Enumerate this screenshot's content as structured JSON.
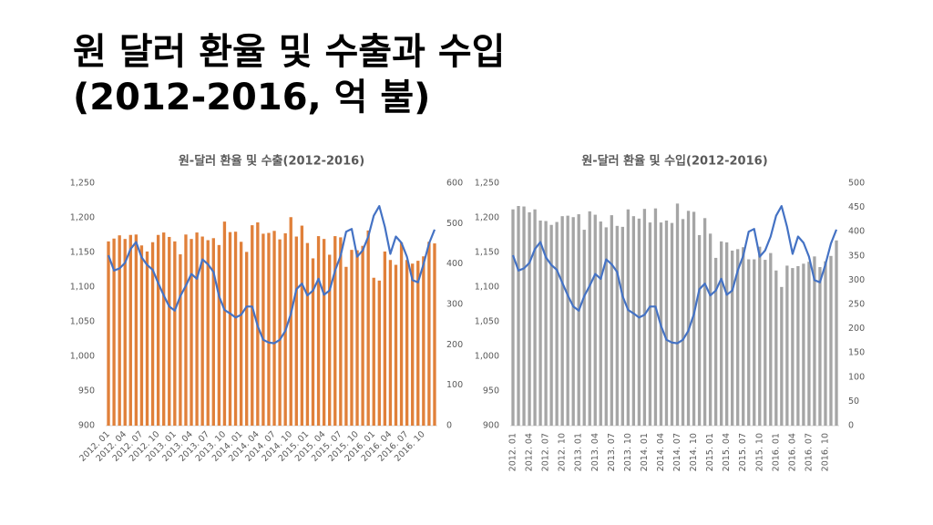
{
  "slide_title": [
    "원 달러 환율 및 수출과 수입",
    "(2012-2016, 억 불)"
  ],
  "chart_data": [
    {
      "type": "combo",
      "title": "원-달러 환율 및 수출(2012-2016)",
      "categories": [
        "2012. 01",
        null,
        null,
        "2012. 04",
        null,
        null,
        "2012. 07",
        null,
        null,
        "2012. 10",
        null,
        null,
        "2013. 01",
        null,
        null,
        "2013. 04",
        null,
        null,
        "2013. 07",
        null,
        null,
        "2013. 10",
        null,
        null,
        "2014. 01",
        null,
        null,
        "2014. 04",
        null,
        null,
        "2014. 07",
        null,
        null,
        "2014. 10",
        null,
        null,
        "2015. 01",
        null,
        null,
        "2015. 04",
        null,
        null,
        "2015. 07",
        null,
        null,
        "2015. 10",
        null,
        null,
        "2016. 01",
        null,
        null,
        "2016. 04",
        null,
        null,
        "2016. 07",
        null,
        null,
        "2016. 10",
        null,
        null
      ],
      "ylim": [
        900,
        1250
      ],
      "yticks": [
        900,
        950,
        {
          "value": 1000,
          "label": "1,000"
        },
        {
          "value": 1050,
          "label": "1,050"
        },
        {
          "value": 1100,
          "label": "1,100"
        },
        {
          "value": 1150,
          "label": "1,150"
        },
        {
          "value": 1200,
          "label": "1,200"
        },
        {
          "value": 1250,
          "label": "1,250"
        }
      ],
      "y2lim": [
        0,
        600
      ],
      "y2ticks": [
        0,
        100,
        200,
        300,
        400,
        500,
        600
      ],
      "series": [
        {
          "type": "bar",
          "axis": "y2",
          "color": "#e0803a",
          "values": [
            456,
            463,
            471,
            462,
            472,
            473,
            446,
            431,
            454,
            472,
            478,
            467,
            456,
            424,
            473,
            462,
            478,
            468,
            459,
            464,
            447,
            505,
            479,
            480,
            455,
            430,
            496,
            503,
            475,
            477,
            482,
            461,
            476,
            516,
            468,
            495,
            452,
            414,
            469,
            462,
            423,
            469,
            466,
            393,
            435,
            434,
            445,
            483,
            366,
            359,
            431,
            410,
            398,
            453,
            410,
            401,
            408,
            419,
            455,
            451
          ]
        },
        {
          "type": "line",
          "color": "#4472c4",
          "values": [
            1146,
            1124,
            1127,
            1135,
            1155,
            1165,
            1143,
            1132,
            1125,
            1106,
            1088,
            1072,
            1066,
            1087,
            1102,
            1119,
            1112,
            1140,
            1133,
            1122,
            1087,
            1067,
            1062,
            1056,
            1060,
            1072,
            1072,
            1044,
            1024,
            1020,
            1019,
            1024,
            1037,
            1061,
            1097,
            1105,
            1088,
            1095,
            1112,
            1089,
            1095,
            1124,
            1145,
            1180,
            1184,
            1144,
            1153,
            1173,
            1203,
            1217,
            1187,
            1148,
            1173,
            1164,
            1144,
            1110,
            1107,
            1133,
            1163,
            1183
          ]
        }
      ]
    },
    {
      "type": "combo",
      "title": "원-달러 환율 및 수입(2012-2016)",
      "categories": [
        "2012. 01",
        null,
        null,
        "2012. 04",
        null,
        null,
        "2012. 07",
        null,
        null,
        "2012. 10",
        null,
        null,
        "2013. 01",
        null,
        null,
        "2013. 04",
        null,
        null,
        "2013. 07",
        null,
        null,
        "2013. 10",
        null,
        null,
        "2014. 01",
        null,
        null,
        "2014. 04",
        null,
        null,
        "2014. 07",
        null,
        null,
        "2014. 10",
        null,
        null,
        "2015. 01",
        null,
        null,
        "2015. 04",
        null,
        null,
        "2015. 07",
        null,
        null,
        "2015. 10",
        null,
        null,
        "2016. 01",
        null,
        null,
        "2016. 04",
        null,
        null,
        "2016. 07",
        null,
        null,
        "2016. 10",
        null,
        null
      ],
      "ylim": [
        900,
        1250
      ],
      "yticks": [
        900,
        950,
        {
          "value": 1000,
          "label": "1,000"
        },
        {
          "value": 1050,
          "label": "1,050"
        },
        {
          "value": 1100,
          "label": "1,100"
        },
        {
          "value": 1150,
          "label": "1,150"
        },
        {
          "value": 1200,
          "label": "1,200"
        },
        {
          "value": 1250,
          "label": "1,250"
        }
      ],
      "y2lim": [
        0,
        500
      ],
      "y2ticks": [
        0,
        50,
        100,
        150,
        200,
        250,
        300,
        350,
        400,
        450,
        500
      ],
      "series": [
        {
          "type": "bar",
          "axis": "y2",
          "color": "#a5a5a5",
          "values": [
            446,
            453,
            452,
            440,
            446,
            423,
            422,
            414,
            420,
            432,
            433,
            430,
            436,
            404,
            442,
            435,
            421,
            409,
            434,
            412,
            410,
            446,
            432,
            427,
            447,
            419,
            448,
            419,
            423,
            418,
            458,
            426,
            443,
            441,
            393,
            428,
            396,
            346,
            380,
            378,
            361,
            364,
            368,
            343,
            343,
            369,
            342,
            356,
            320,
            286,
            330,
            325,
            329,
            334,
            338,
            349,
            327,
            339,
            350,
            382
          ]
        },
        {
          "type": "line",
          "color": "#4472c4",
          "values": [
            1146,
            1124,
            1127,
            1135,
            1155,
            1165,
            1143,
            1132,
            1125,
            1106,
            1088,
            1072,
            1066,
            1087,
            1102,
            1119,
            1112,
            1140,
            1133,
            1122,
            1087,
            1067,
            1062,
            1056,
            1060,
            1072,
            1072,
            1044,
            1024,
            1020,
            1019,
            1024,
            1037,
            1061,
            1097,
            1105,
            1088,
            1095,
            1112,
            1089,
            1095,
            1124,
            1145,
            1180,
            1184,
            1144,
            1153,
            1173,
            1203,
            1217,
            1187,
            1148,
            1173,
            1164,
            1144,
            1110,
            1107,
            1133,
            1163,
            1183
          ]
        }
      ]
    }
  ]
}
